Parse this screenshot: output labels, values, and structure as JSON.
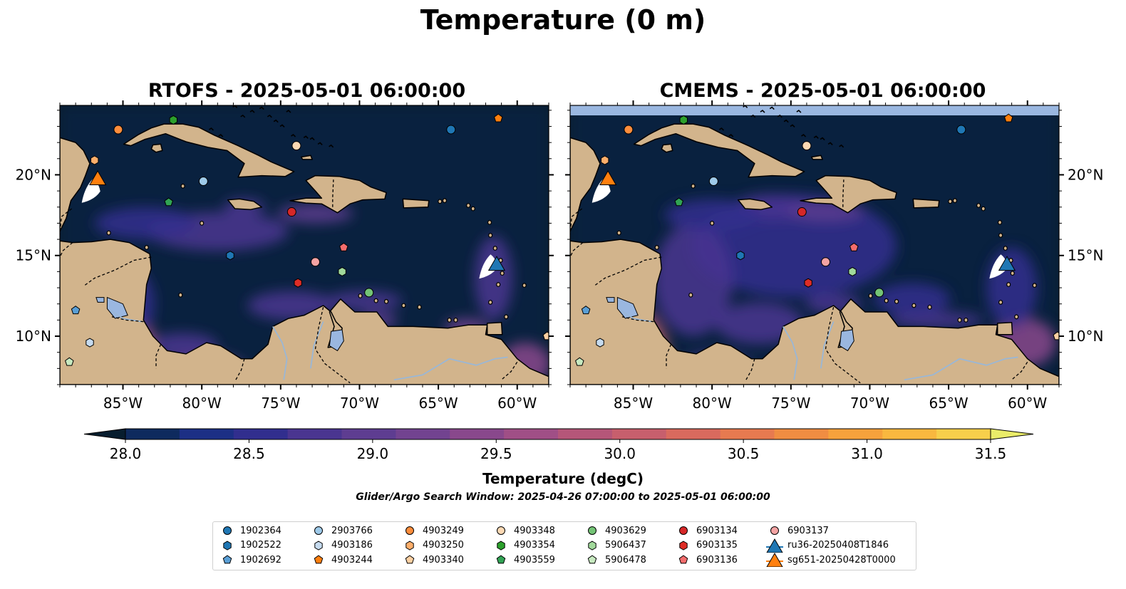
{
  "figure": {
    "title": "Temperature (0 m)",
    "search_window": "Glider/Argo Search Window: 2025-04-26 07:00:00 to 2025-05-01 06:00:00"
  },
  "panels": [
    {
      "id": "rtofs",
      "title": "RTOFS - 2025-05-01 06:00:00",
      "has_nodata_band": false
    },
    {
      "id": "cmems",
      "title": "CMEMS - 2025-05-01 06:00:00",
      "has_nodata_band": true
    }
  ],
  "map": {
    "lon_range": [
      -89,
      -58
    ],
    "lat_range": [
      7,
      24.3
    ],
    "lon_ticks": [
      "85°W",
      "80°W",
      "75°W",
      "70°W",
      "65°W",
      "60°W"
    ],
    "lon_tick_values": [
      -85,
      -80,
      -75,
      -70,
      -65,
      -60
    ],
    "lat_ticks": [
      "10°N",
      "15°N",
      "20°N"
    ],
    "lat_tick_values": [
      10,
      15,
      20
    ],
    "colors": {
      "land": "#d2b48c",
      "ocean_base": "#071d2e",
      "border": "#000000",
      "rivers": "#9ab7d6"
    }
  },
  "colorbar": {
    "label": "Temperature (degC)",
    "min": 28.0,
    "max": 31.5,
    "tick_labels": [
      "28.0",
      "28.5",
      "29.0",
      "29.5",
      "30.0",
      "30.5",
      "31.0",
      "31.5"
    ],
    "tick_values": [
      28.0,
      28.5,
      29.0,
      29.5,
      30.0,
      30.5,
      31.0,
      31.5
    ],
    "extend": "both",
    "colors": [
      "#071d2e",
      "#0e2a5e",
      "#1c2f85",
      "#312e8e",
      "#4a3590",
      "#5e3d91",
      "#724390",
      "#89488c",
      "#a04f86",
      "#b55679",
      "#c75f6d",
      "#d96a5e",
      "#e77a50",
      "#f08d42",
      "#f6a23c",
      "#f9b83f",
      "#f7cf4b",
      "#eaec69"
    ]
  },
  "chart_data": {
    "type": "scatter",
    "title": "Temperature (0 m)",
    "xlabel": "",
    "ylabel": "",
    "series": [
      {
        "name": "1902364",
        "marker": "circle",
        "color": "#1f77b4",
        "x": [
          -64.2
        ],
        "y": [
          22.8
        ]
      },
      {
        "name": "1902522",
        "marker": "hexagon",
        "color": "#1f77b4",
        "x": [
          -78.2
        ],
        "y": [
          15.0
        ]
      },
      {
        "name": "1902692",
        "marker": "pentagon",
        "color": "#5a9fd6",
        "x": [
          -88.0
        ],
        "y": [
          11.6
        ]
      },
      {
        "name": "2903766",
        "marker": "circle",
        "color": "#9ecae9",
        "x": [
          -79.9
        ],
        "y": [
          19.6
        ]
      },
      {
        "name": "4903186",
        "marker": "hexagon",
        "color": "#c6dbef",
        "x": [
          -87.1
        ],
        "y": [
          9.6
        ]
      },
      {
        "name": "4903244",
        "marker": "pentagon",
        "color": "#ff7f0e",
        "x": [
          -61.2
        ],
        "y": [
          23.5
        ]
      },
      {
        "name": "4903249",
        "marker": "circle",
        "color": "#fd8d3c",
        "x": [
          -85.3
        ],
        "y": [
          22.8
        ]
      },
      {
        "name": "4903250",
        "marker": "hexagon",
        "color": "#fdae6b",
        "x": [
          -86.8
        ],
        "y": [
          20.9
        ]
      },
      {
        "name": "4903340",
        "marker": "pentagon",
        "color": "#fdd0a2",
        "x": [
          -58.1
        ],
        "y": [
          10.0
        ]
      },
      {
        "name": "4903348",
        "marker": "circle",
        "color": "#fdd9b4",
        "x": [
          -74.0
        ],
        "y": [
          21.8
        ]
      },
      {
        "name": "4903354",
        "marker": "hexagon",
        "color": "#2ca02c",
        "x": [
          -81.8
        ],
        "y": [
          23.4
        ]
      },
      {
        "name": "4903559",
        "marker": "pentagon",
        "color": "#31a354",
        "x": [
          -82.1
        ],
        "y": [
          18.3
        ]
      },
      {
        "name": "4903629",
        "marker": "circle",
        "color": "#74c476",
        "x": [
          -69.4
        ],
        "y": [
          12.7
        ]
      },
      {
        "name": "5906437",
        "marker": "hexagon",
        "color": "#a1d99b",
        "x": [
          -71.1
        ],
        "y": [
          14.0
        ]
      },
      {
        "name": "5906478",
        "marker": "pentagon",
        "color": "#c7e9c0",
        "x": [
          -88.4
        ],
        "y": [
          8.4
        ]
      },
      {
        "name": "6903134",
        "marker": "circle",
        "color": "#d62728",
        "x": [
          -74.3
        ],
        "y": [
          17.7
        ]
      },
      {
        "name": "6903135",
        "marker": "hexagon",
        "color": "#de2d26",
        "x": [
          -73.9
        ],
        "y": [
          13.3
        ]
      },
      {
        "name": "6903136",
        "marker": "pentagon",
        "color": "#f46d6d",
        "x": [
          -71.0
        ],
        "y": [
          15.5
        ]
      },
      {
        "name": "6903137",
        "marker": "circle",
        "color": "#f4a3a3",
        "x": [
          -72.8
        ],
        "y": [
          14.6
        ]
      },
      {
        "name": "ru36-20250408T1846",
        "marker": "triangle",
        "color": "#1f77b4",
        "x": [
          -61.3
        ],
        "y": [
          14.5
        ]
      },
      {
        "name": "sg651-20250428T0000",
        "marker": "triangle",
        "color": "#ff7f0e",
        "x": [
          -86.6
        ],
        "y": [
          19.8
        ]
      }
    ]
  },
  "legend": {
    "columns": [
      [
        "1902364",
        "1902522",
        "1902692"
      ],
      [
        "2903766",
        "4903186",
        "4903244"
      ],
      [
        "4903249",
        "4903250",
        "4903340"
      ],
      [
        "4903348",
        "4903354",
        "4903559"
      ],
      [
        "4903629",
        "5906437",
        "5906478"
      ],
      [
        "6903134",
        "6903135",
        "6903136"
      ],
      [
        "6903137",
        "ru36-20250408T1846",
        "sg651-20250428T0000"
      ]
    ]
  }
}
